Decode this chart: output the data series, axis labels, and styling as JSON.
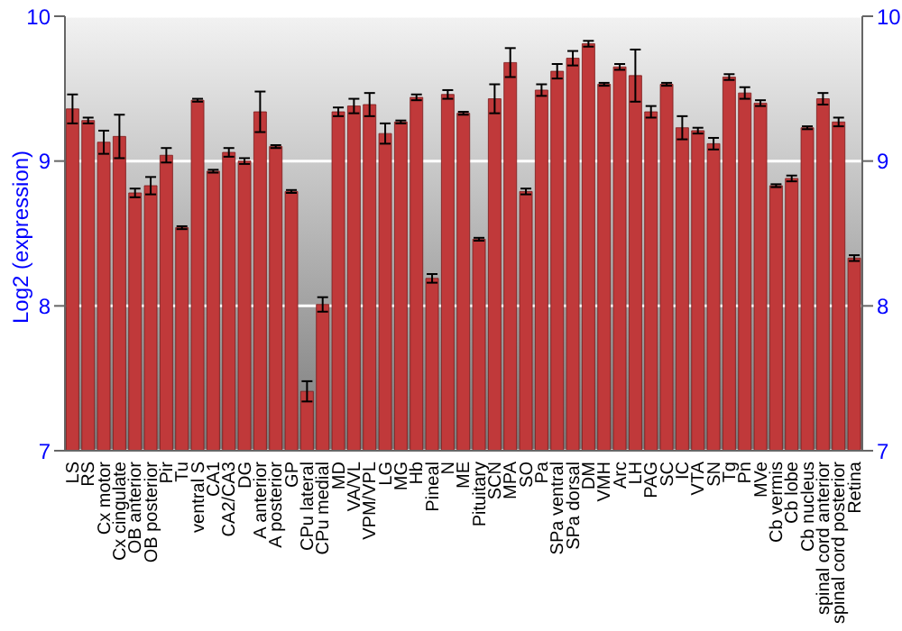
{
  "chart_data": {
    "type": "bar",
    "ylabel": "Log2 (expression)",
    "categories": [
      "LS",
      "RS",
      "Cx motor",
      "Cx cingulate",
      "OB anterior",
      "OB posterior",
      "Pir",
      "Tu",
      "ventral S",
      "CA1",
      "CA2/CA3",
      "DG",
      "A anterior",
      "A posterior",
      "GP",
      "CPu lateral",
      "CPu medial",
      "MD",
      "VA/VL",
      "VPM/VPL",
      "LG",
      "MG",
      "Hb",
      "Pineal",
      "N",
      "ME",
      "Pituitary",
      "SCN",
      "MPA",
      "SO",
      "Pa",
      "SPa ventral",
      "SPa dorsal",
      "DM",
      "VMH",
      "Arc",
      "LH",
      "PAG",
      "SC",
      "IC",
      "VTA",
      "SN",
      "Tg",
      "Pn",
      "MVe",
      "Cb vermis",
      "Cb lobe",
      "Cb nucleus",
      "spinal cord anterior",
      "spinal cord posterior",
      "Retina"
    ],
    "values": [
      9.36,
      9.28,
      9.13,
      9.17,
      8.78,
      8.83,
      9.04,
      8.54,
      9.42,
      8.93,
      9.06,
      9.0,
      9.34,
      9.1,
      8.79,
      7.41,
      8.01,
      9.34,
      9.38,
      9.39,
      9.19,
      9.27,
      9.44,
      8.19,
      9.46,
      9.33,
      8.46,
      9.43,
      9.68,
      8.79,
      9.49,
      9.62,
      9.71,
      9.81,
      9.53,
      9.65,
      9.59,
      9.34,
      9.53,
      9.23,
      9.21,
      9.12,
      9.58,
      9.47,
      9.4,
      8.83,
      8.88,
      9.23,
      9.43,
      9.27,
      8.33
    ],
    "errors": [
      0.1,
      0.02,
      0.08,
      0.15,
      0.03,
      0.06,
      0.05,
      0.01,
      0.01,
      0.01,
      0.03,
      0.02,
      0.14,
      0.01,
      0.01,
      0.07,
      0.05,
      0.03,
      0.05,
      0.08,
      0.07,
      0.01,
      0.02,
      0.03,
      0.03,
      0.01,
      0.01,
      0.1,
      0.1,
      0.02,
      0.04,
      0.05,
      0.05,
      0.02,
      0.01,
      0.02,
      0.18,
      0.04,
      0.01,
      0.08,
      0.02,
      0.04,
      0.02,
      0.04,
      0.02,
      0.01,
      0.02,
      0.01,
      0.04,
      0.03,
      0.02
    ],
    "color": "#c0393a",
    "ylim": [
      7,
      10
    ],
    "yticks": [
      7,
      8,
      9,
      10
    ],
    "y2lim": [
      7,
      10
    ],
    "y2ticks": [
      7,
      8,
      9,
      10
    ],
    "grid": "y"
  }
}
